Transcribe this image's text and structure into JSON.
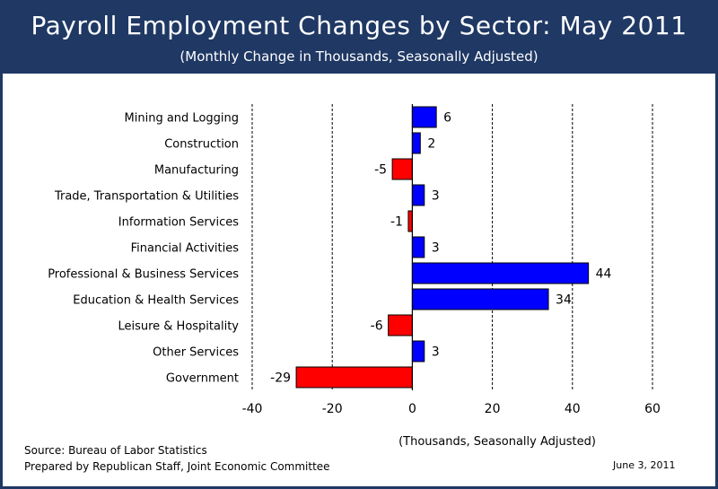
{
  "header": {
    "title": "Payroll Employment Changes by Sector: May 2011",
    "subtitle": "(Monthly Change in Thousands, Seasonally Adjusted)"
  },
  "chart_data": {
    "type": "bar",
    "orientation": "horizontal",
    "title": "Payroll Employment Changes by Sector: May 2011",
    "subtitle": "(Monthly Change in Thousands, Seasonally Adjusted)",
    "xlabel": "(Thousands, Seasonally Adjusted)",
    "ylabel": "",
    "xlim": [
      -40,
      60
    ],
    "xticks": [
      -40,
      -20,
      0,
      20,
      40,
      60
    ],
    "grid": "vertical dashed",
    "categories": [
      "Mining and Logging",
      "Construction",
      "Manufacturing",
      "Trade, Transportation & Utilities",
      "Information Services",
      "Financial Activities",
      "Professional & Business Services",
      "Education & Health Services",
      "Leisure & Hospitality",
      "Other Services",
      "Government"
    ],
    "values": [
      6,
      2,
      -5,
      3,
      -1,
      3,
      44,
      34,
      -6,
      3,
      -29
    ],
    "colors": {
      "positive": "#0000ff",
      "negative": "#ff0000",
      "grid": "#000000"
    }
  },
  "footer": {
    "source": "Source:  Bureau of Labor Statistics",
    "prepared": "Prepared by Republican Staff, Joint Economic Committee",
    "date": "June 3, 2011"
  }
}
